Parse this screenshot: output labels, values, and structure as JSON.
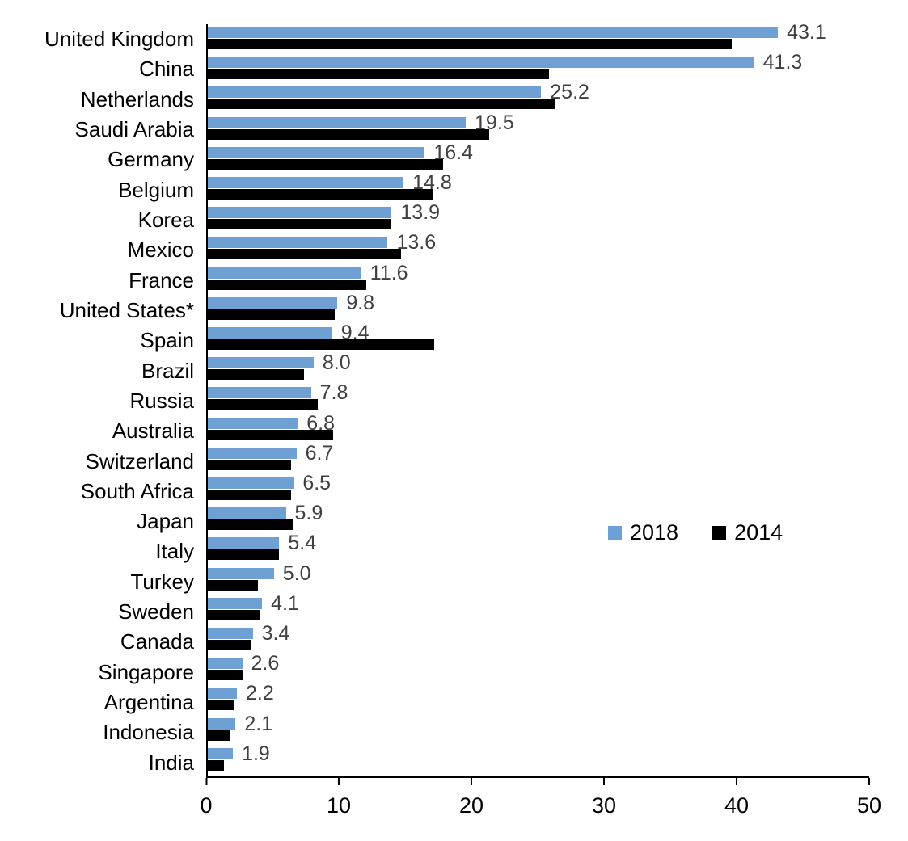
{
  "chart_data": {
    "type": "bar",
    "orientation": "horizontal",
    "title": "",
    "xlabel": "",
    "ylabel": "",
    "xlim": [
      0,
      50
    ],
    "x_ticks": [
      "0",
      "10",
      "20",
      "30",
      "40",
      "50"
    ],
    "grid": false,
    "legend_position": "middle-right",
    "categories": [
      "United Kingdom",
      "China",
      "Netherlands",
      "Saudi Arabia",
      "Germany",
      "Belgium",
      "Korea",
      "Mexico",
      "France",
      "United States*",
      "Spain",
      "Brazil",
      "Russia",
      "Australia",
      "Switzerland",
      "South Africa",
      "Japan",
      "Italy",
      "Turkey",
      "Sweden",
      "Canada",
      "Singapore",
      "Argentina",
      "Indonesia",
      "India"
    ],
    "series": [
      {
        "name": "2018",
        "color": "#6FA0D3",
        "values": [
          43.1,
          41.3,
          25.2,
          19.5,
          16.4,
          14.8,
          13.9,
          13.6,
          11.6,
          9.8,
          9.4,
          8.0,
          7.8,
          6.8,
          6.7,
          6.5,
          5.9,
          5.4,
          5.0,
          4.1,
          3.4,
          2.6,
          2.2,
          2.1,
          1.9
        ]
      },
      {
        "name": "2014",
        "color": "#000000",
        "values": [
          39.6,
          25.8,
          26.3,
          21.3,
          17.8,
          17.0,
          13.9,
          14.6,
          12.0,
          9.6,
          17.1,
          7.3,
          8.3,
          9.5,
          6.3,
          6.3,
          6.4,
          5.4,
          3.8,
          4.0,
          3.3,
          2.7,
          2.0,
          1.7,
          1.2
        ]
      }
    ],
    "data_labels": [
      "43.1",
      "41.3",
      "25.2",
      "19.5",
      "16.4",
      "14.8",
      "13.9",
      "13.6",
      "11.6",
      "9.8",
      "9.4",
      "8.0",
      "7.8",
      "6.8",
      "6.7",
      "6.5",
      "5.9",
      "5.4",
      "5.0",
      "4.1",
      "3.4",
      "2.6",
      "2.2",
      "2.1",
      "1.9"
    ],
    "data_label_color": "#404040",
    "axis_color": "#000000"
  },
  "legend": {
    "items": [
      {
        "label": "2018",
        "color": "#6FA0D3"
      },
      {
        "label": "2014",
        "color": "#000000"
      }
    ]
  }
}
